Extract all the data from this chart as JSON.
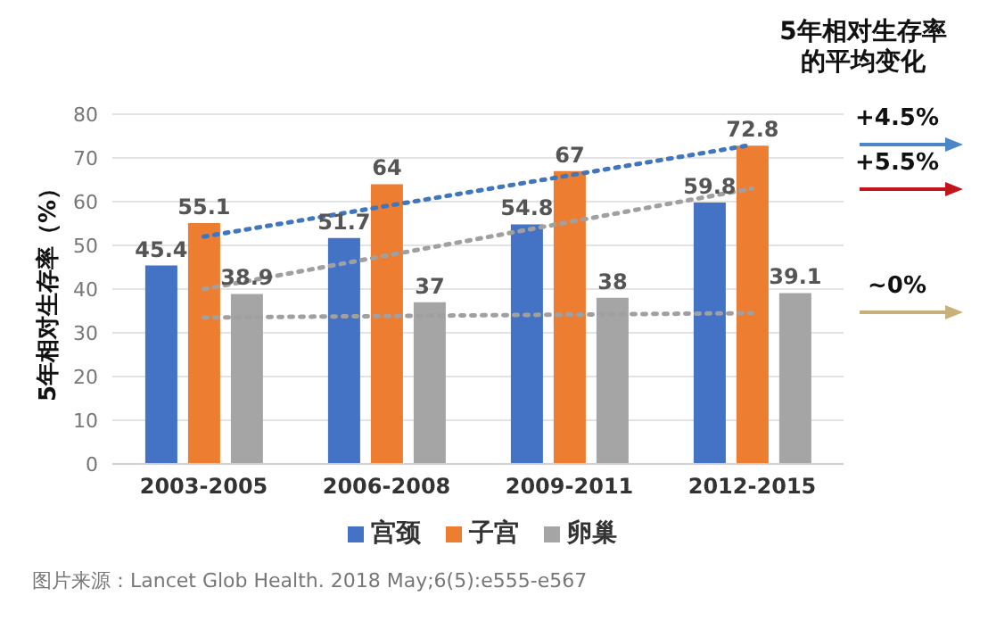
{
  "chart_data": {
    "type": "bar",
    "ylabel": "5年相对生存率（%）",
    "categories": [
      "2003-2005",
      "2006-2008",
      "2009-2011",
      "2012-2015"
    ],
    "series": [
      {
        "name": "宫颈",
        "color": "#4472c4",
        "values": [
          45.4,
          51.7,
          54.8,
          59.8
        ],
        "value_labels": [
          "45.4",
          "51.7",
          "54.8",
          "59.8"
        ]
      },
      {
        "name": "子宫",
        "color": "#ed7d31",
        "values": [
          55.1,
          64,
          67,
          72.8
        ],
        "value_labels": [
          "55.1",
          "64",
          "67",
          "72.8"
        ]
      },
      {
        "name": "卵巢",
        "color": "#a5a5a5",
        "values": [
          38.9,
          37,
          38,
          39.1
        ],
        "value_labels": [
          "38.9",
          "37",
          "38",
          "39.1"
        ]
      },
      {
        "type": "line",
        "color": "#3f76c0",
        "x": [
          "2003-2005",
          "2012-2015"
        ],
        "values": [
          52,
          73
        ],
        "line_style": "dotted",
        "marker": "none"
      },
      {
        "type": "line",
        "color": "#a0a0a0",
        "x": [
          "2003-2005",
          "2012-2015"
        ],
        "values": [
          40,
          63
        ],
        "line_style": "dotted",
        "marker": "none"
      },
      {
        "type": "line",
        "color": "#a0a0a0",
        "x": [
          "2003-2005",
          "2012-2015"
        ],
        "values": [
          33.5,
          34.5
        ],
        "line_style": "dotted",
        "marker": "none"
      }
    ],
    "ylim": [
      0,
      80
    ],
    "yticks": [
      0,
      10,
      20,
      30,
      40,
      50,
      60,
      70,
      80
    ],
    "grid": "y",
    "legend": "bottom",
    "annotations": [
      "5年相对生存率的平均变化",
      "+4.5%",
      "+5.5%",
      "~0%",
      "图片来源：Lancet Glob Health. 2018 May;6(5):e555-e567"
    ]
  }
}
